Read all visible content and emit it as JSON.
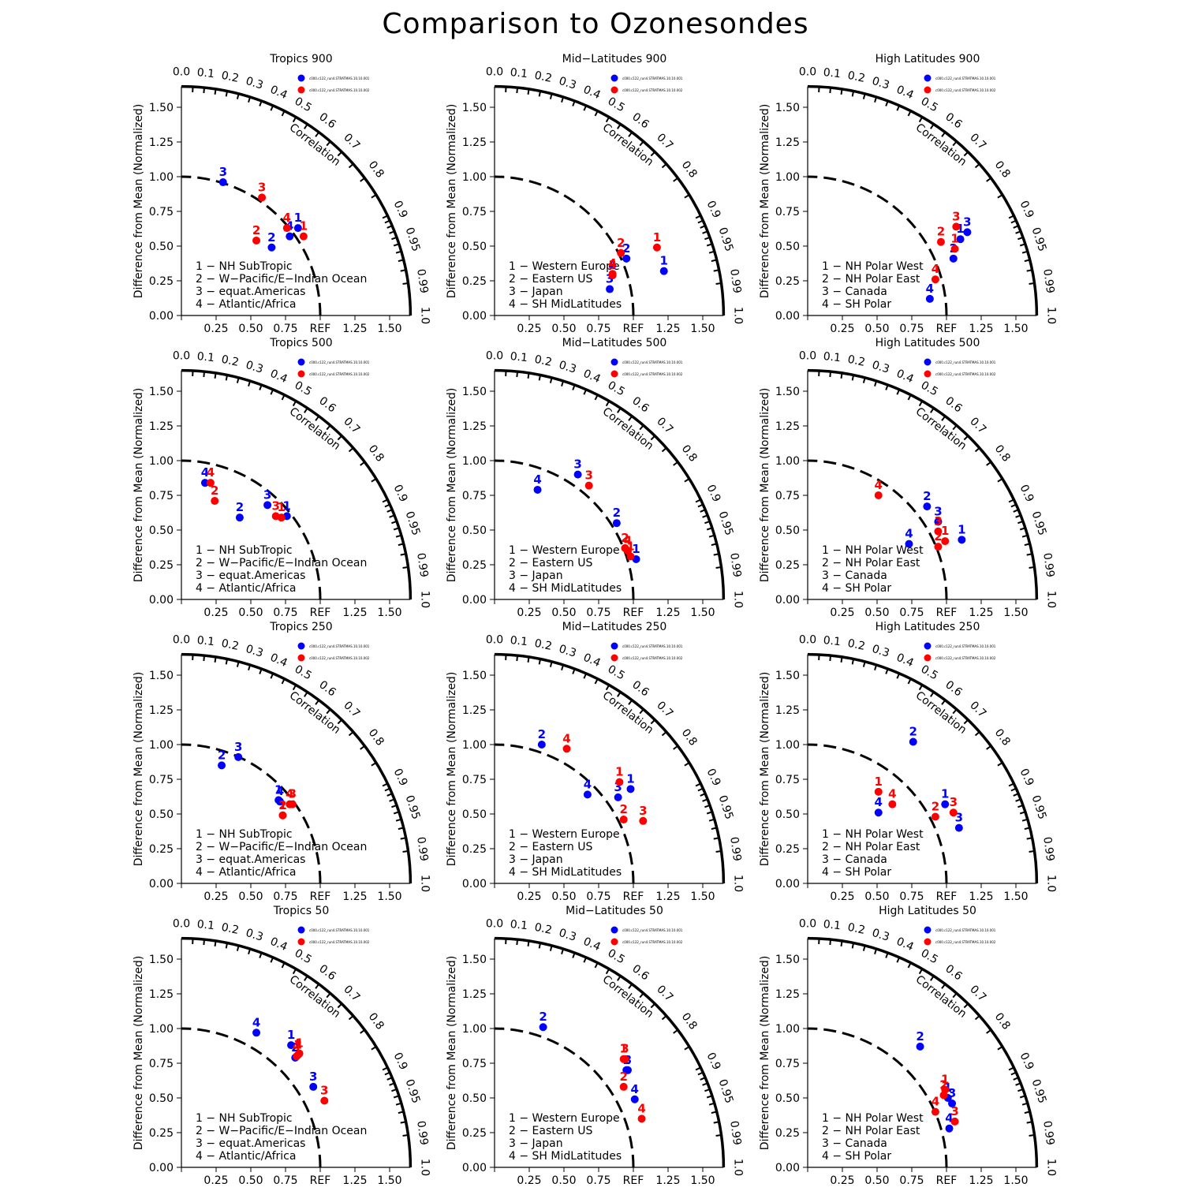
{
  "title": "Comparison to Ozonesondes",
  "colors": {
    "series1": "#0000ff",
    "series2": "#ff0000",
    "axis": "#000000"
  },
  "common": {
    "ylabel": "Difference from Mean (Normalized)",
    "correlation_label": "Correlation",
    "x_ticks": [
      "0.00",
      "0.25",
      "0.50",
      "0.75",
      "REF",
      "1.25",
      "1.50"
    ],
    "y_ticks": [
      "0.00",
      "0.25",
      "0.50",
      "0.75",
      "1.00",
      "1.25",
      "1.50"
    ],
    "corr_labels": [
      "0.0",
      "0.1",
      "0.2",
      "0.3",
      "0.4",
      "0.5",
      "0.6",
      "0.7",
      "0.8",
      "0.9",
      "0.95",
      "0.99",
      "1.0"
    ],
    "legend_series": [
      "c000.c122_run4.STRATMAS.10.10.001",
      "c000.c122_run4.STRATMAS.10.10.002"
    ]
  },
  "region_legends": {
    "tropics": [
      "1 − NH SubTropic",
      "2 − W−Pacific/E−Indian Ocean",
      "3 − equat.Americas",
      "4 − Atlantic/Africa"
    ],
    "midlat": [
      "1 − Western Europe",
      "2 − Eastern US",
      "3 − Japan",
      "4 − SH MidLatitudes"
    ],
    "highlat": [
      "1 − NH Polar West",
      "2 − NH Polar East",
      "3 − Canada",
      "4 − SH Polar"
    ]
  },
  "chart_data": [
    {
      "type": "scatter",
      "title": "Tropics 900",
      "legend": "tropics",
      "xlim": [
        0,
        1.65
      ],
      "ylim": [
        0,
        1.65
      ],
      "series": [
        {
          "points": [
            {
              "label": "1",
              "x": 0.84,
              "y": 0.63
            },
            {
              "label": "2",
              "x": 0.65,
              "y": 0.49
            },
            {
              "label": "3",
              "x": 0.3,
              "y": 0.96
            },
            {
              "label": "4",
              "x": 0.78,
              "y": 0.57
            }
          ]
        },
        {
          "points": [
            {
              "label": "1",
              "x": 0.88,
              "y": 0.57
            },
            {
              "label": "2",
              "x": 0.54,
              "y": 0.54
            },
            {
              "label": "3",
              "x": 0.58,
              "y": 0.85
            },
            {
              "label": "4",
              "x": 0.76,
              "y": 0.63
            }
          ]
        }
      ]
    },
    {
      "type": "scatter",
      "title": "Mid−Latitudes 900",
      "legend": "midlat",
      "xlim": [
        0,
        1.65
      ],
      "ylim": [
        0,
        1.65
      ],
      "series": [
        {
          "points": [
            {
              "label": "1",
              "x": 1.22,
              "y": 0.32
            },
            {
              "label": "2",
              "x": 0.95,
              "y": 0.41
            },
            {
              "label": "3",
              "x": 0.83,
              "y": 0.19
            },
            {
              "label": "4",
              "x": 0.85,
              "y": 0.29
            }
          ]
        },
        {
          "points": [
            {
              "label": "1",
              "x": 1.17,
              "y": 0.49
            },
            {
              "label": "2",
              "x": 0.91,
              "y": 0.45
            },
            {
              "label": "3",
              "x": 0.85,
              "y": 0.29
            },
            {
              "label": "4",
              "x": 0.85,
              "y": 0.3
            }
          ]
        }
      ]
    },
    {
      "type": "scatter",
      "title": "High Latitudes 900",
      "legend": "highlat",
      "xlim": [
        0,
        1.65
      ],
      "ylim": [
        0,
        1.65
      ],
      "series": [
        {
          "points": [
            {
              "label": "1",
              "x": 1.1,
              "y": 0.55
            },
            {
              "label": "2",
              "x": 1.05,
              "y": 0.41
            },
            {
              "label": "3",
              "x": 1.15,
              "y": 0.6
            },
            {
              "label": "4",
              "x": 0.88,
              "y": 0.12
            }
          ]
        },
        {
          "points": [
            {
              "label": "1",
              "x": 1.06,
              "y": 0.48
            },
            {
              "label": "2",
              "x": 0.96,
              "y": 0.53
            },
            {
              "label": "3",
              "x": 1.07,
              "y": 0.64
            },
            {
              "label": "4",
              "x": 0.92,
              "y": 0.26
            }
          ]
        }
      ]
    },
    {
      "type": "scatter",
      "title": "Tropics 500",
      "legend": "tropics",
      "xlim": [
        0,
        1.65
      ],
      "ylim": [
        0,
        1.65
      ],
      "series": [
        {
          "points": [
            {
              "label": "1",
              "x": 0.76,
              "y": 0.6
            },
            {
              "label": "2",
              "x": 0.42,
              "y": 0.59
            },
            {
              "label": "3",
              "x": 0.62,
              "y": 0.68
            },
            {
              "label": "4",
              "x": 0.17,
              "y": 0.84
            }
          ]
        },
        {
          "points": [
            {
              "label": "1",
              "x": 0.72,
              "y": 0.59
            },
            {
              "label": "2",
              "x": 0.24,
              "y": 0.71
            },
            {
              "label": "3",
              "x": 0.68,
              "y": 0.6
            },
            {
              "label": "4",
              "x": 0.21,
              "y": 0.84
            }
          ]
        }
      ]
    },
    {
      "type": "scatter",
      "title": "Mid−Latitudes 500",
      "legend": "midlat",
      "xlim": [
        0,
        1.65
      ],
      "ylim": [
        0,
        1.65
      ],
      "series": [
        {
          "points": [
            {
              "label": "1",
              "x": 1.02,
              "y": 0.29
            },
            {
              "label": "2",
              "x": 0.88,
              "y": 0.55
            },
            {
              "label": "3",
              "x": 0.6,
              "y": 0.9
            },
            {
              "label": "4",
              "x": 0.31,
              "y": 0.79
            }
          ]
        },
        {
          "points": [
            {
              "label": "1",
              "x": 0.98,
              "y": 0.31
            },
            {
              "label": "2",
              "x": 0.94,
              "y": 0.37
            },
            {
              "label": "3",
              "x": 0.68,
              "y": 0.82
            },
            {
              "label": "4",
              "x": 0.96,
              "y": 0.35
            }
          ]
        }
      ]
    },
    {
      "type": "scatter",
      "title": "High Latitudes 500",
      "legend": "highlat",
      "xlim": [
        0,
        1.65
      ],
      "ylim": [
        0,
        1.65
      ],
      "series": [
        {
          "points": [
            {
              "label": "1",
              "x": 1.11,
              "y": 0.43
            },
            {
              "label": "2",
              "x": 0.86,
              "y": 0.67
            },
            {
              "label": "3",
              "x": 0.94,
              "y": 0.56
            },
            {
              "label": "4",
              "x": 0.73,
              "y": 0.4
            }
          ]
        },
        {
          "points": [
            {
              "label": "1",
              "x": 0.99,
              "y": 0.42
            },
            {
              "label": "2",
              "x": 0.94,
              "y": 0.38
            },
            {
              "label": "3",
              "x": 0.94,
              "y": 0.49
            },
            {
              "label": "4",
              "x": 0.51,
              "y": 0.75
            }
          ]
        }
      ]
    },
    {
      "type": "scatter",
      "title": "Tropics 250",
      "legend": "tropics",
      "xlim": [
        0,
        1.65
      ],
      "ylim": [
        0,
        1.65
      ],
      "series": [
        {
          "points": [
            {
              "label": "1",
              "x": 0.7,
              "y": 0.6
            },
            {
              "label": "2",
              "x": 0.29,
              "y": 0.85
            },
            {
              "label": "3",
              "x": 0.41,
              "y": 0.91
            },
            {
              "label": "4",
              "x": 0.71,
              "y": 0.59
            }
          ]
        },
        {
          "points": [
            {
              "label": "1",
              "x": 0.73,
              "y": 0.49
            },
            {
              "label": "2",
              "x": 0.73,
              "y": 0.49
            },
            {
              "label": "3",
              "x": 0.8,
              "y": 0.57
            },
            {
              "label": "4",
              "x": 0.78,
              "y": 0.57
            }
          ]
        }
      ]
    },
    {
      "type": "scatter",
      "title": "Mid−Latitudes 250",
      "legend": "midlat",
      "xlim": [
        0,
        1.65
      ],
      "ylim": [
        0,
        1.65
      ],
      "series": [
        {
          "points": [
            {
              "label": "1",
              "x": 0.98,
              "y": 0.68
            },
            {
              "label": "2",
              "x": 0.34,
              "y": 1.0
            },
            {
              "label": "3",
              "x": 0.89,
              "y": 0.62
            },
            {
              "label": "4",
              "x": 0.67,
              "y": 0.64
            }
          ]
        },
        {
          "points": [
            {
              "label": "1",
              "x": 0.9,
              "y": 0.73
            },
            {
              "label": "2",
              "x": 0.93,
              "y": 0.46
            },
            {
              "label": "3",
              "x": 1.07,
              "y": 0.45
            },
            {
              "label": "4",
              "x": 0.52,
              "y": 0.97
            }
          ]
        }
      ]
    },
    {
      "type": "scatter",
      "title": "High Latitudes 250",
      "legend": "highlat",
      "xlim": [
        0,
        1.65
      ],
      "ylim": [
        0,
        1.65
      ],
      "series": [
        {
          "points": [
            {
              "label": "1",
              "x": 0.99,
              "y": 0.57
            },
            {
              "label": "2",
              "x": 0.76,
              "y": 1.02
            },
            {
              "label": "3",
              "x": 1.09,
              "y": 0.4
            },
            {
              "label": "4",
              "x": 0.51,
              "y": 0.51
            }
          ]
        },
        {
          "points": [
            {
              "label": "1",
              "x": 0.51,
              "y": 0.66
            },
            {
              "label": "2",
              "x": 0.92,
              "y": 0.48
            },
            {
              "label": "3",
              "x": 1.05,
              "y": 0.51
            },
            {
              "label": "4",
              "x": 0.61,
              "y": 0.57
            }
          ]
        }
      ]
    },
    {
      "type": "scatter",
      "title": "Tropics 50",
      "legend": "tropics",
      "xlim": [
        0,
        1.65
      ],
      "ylim": [
        0,
        1.65
      ],
      "series": [
        {
          "points": [
            {
              "label": "1",
              "x": 0.79,
              "y": 0.88
            },
            {
              "label": "2",
              "x": 0.82,
              "y": 0.79
            },
            {
              "label": "3",
              "x": 0.95,
              "y": 0.58
            },
            {
              "label": "4",
              "x": 0.54,
              "y": 0.97
            }
          ]
        },
        {
          "points": [
            {
              "label": "1",
              "x": 0.85,
              "y": 0.82
            },
            {
              "label": "2",
              "x": 0.84,
              "y": 0.81
            },
            {
              "label": "3",
              "x": 1.03,
              "y": 0.48
            },
            {
              "label": "4",
              "x": 0.83,
              "y": 0.8
            }
          ]
        }
      ]
    },
    {
      "type": "scatter",
      "title": "Mid−Latitudes 50",
      "legend": "midlat",
      "xlim": [
        0,
        1.65
      ],
      "ylim": [
        0,
        1.65
      ],
      "series": [
        {
          "points": [
            {
              "label": "1",
              "x": 0.95,
              "y": 0.7
            },
            {
              "label": "2",
              "x": 0.35,
              "y": 1.01
            },
            {
              "label": "3",
              "x": 0.96,
              "y": 0.7
            },
            {
              "label": "4",
              "x": 1.01,
              "y": 0.49
            }
          ]
        },
        {
          "points": [
            {
              "label": "1",
              "x": 0.93,
              "y": 0.78
            },
            {
              "label": "2",
              "x": 0.93,
              "y": 0.58
            },
            {
              "label": "3",
              "x": 0.94,
              "y": 0.78
            },
            {
              "label": "4",
              "x": 1.06,
              "y": 0.35
            }
          ]
        }
      ]
    },
    {
      "type": "scatter",
      "title": "High Latitudes 50",
      "legend": "highlat",
      "xlim": [
        0,
        1.65
      ],
      "ylim": [
        0,
        1.65
      ],
      "series": [
        {
          "points": [
            {
              "label": "1",
              "x": 1.01,
              "y": 0.5
            },
            {
              "label": "2",
              "x": 0.81,
              "y": 0.87
            },
            {
              "label": "3",
              "x": 1.04,
              "y": 0.46
            },
            {
              "label": "4",
              "x": 1.02,
              "y": 0.28
            }
          ]
        },
        {
          "points": [
            {
              "label": "1",
              "x": 0.99,
              "y": 0.56
            },
            {
              "label": "2",
              "x": 0.98,
              "y": 0.52
            },
            {
              "label": "3",
              "x": 1.06,
              "y": 0.33
            },
            {
              "label": "4",
              "x": 0.92,
              "y": 0.4
            }
          ]
        }
      ]
    }
  ]
}
